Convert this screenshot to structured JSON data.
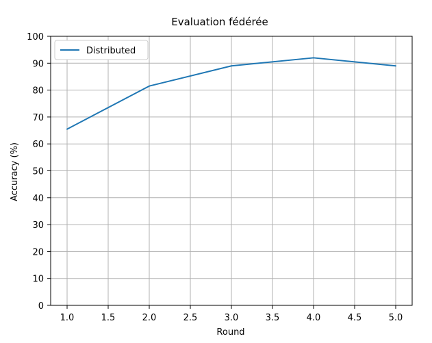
{
  "chart_data": {
    "type": "line",
    "title": "Evaluation fédérée",
    "xlabel": "Round",
    "ylabel": "Accuracy (%)",
    "x": [
      1,
      2,
      3,
      4,
      5
    ],
    "series": [
      {
        "name": "Distributed",
        "values": [
          65.5,
          81.5,
          89,
          92,
          89
        ]
      }
    ],
    "xlim": [
      0.8,
      5.2
    ],
    "ylim": [
      0,
      100
    ],
    "xticks": [
      "1.0",
      "1.5",
      "2.0",
      "2.5",
      "3.0",
      "3.5",
      "4.0",
      "4.5",
      "5.0"
    ],
    "yticks": [
      "0",
      "10",
      "20",
      "30",
      "40",
      "50",
      "60",
      "70",
      "80",
      "90",
      "100"
    ],
    "grid": true,
    "legend": "top-left",
    "colors": {
      "series": "#1f77b4",
      "grid": "#b0b0b0",
      "axes": "#000000"
    }
  }
}
